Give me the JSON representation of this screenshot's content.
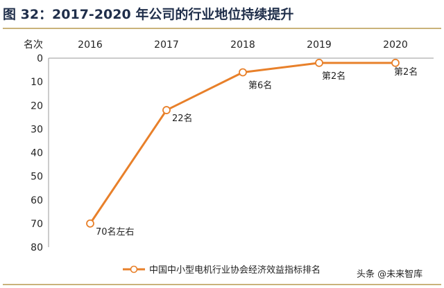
{
  "title": "图 32：2017-2020 年公司的行业地位持续提升",
  "watermark": "头条 @未来智库",
  "chart_data": {
    "type": "line",
    "ylabel": "名次",
    "x": [
      "2016",
      "2017",
      "2018",
      "2019",
      "2020"
    ],
    "ylim": [
      0,
      80
    ],
    "y_inverted": true,
    "y_ticks": [
      0,
      10,
      20,
      30,
      40,
      50,
      60,
      70,
      80
    ],
    "grid": false,
    "legend_position": "bottom-center",
    "series": [
      {
        "name": "中国中小型电机行业协会经济效益指标排名",
        "color": "#e8802a",
        "values": [
          70,
          22,
          6,
          2,
          2
        ],
        "labels": [
          "70名左右",
          "22名",
          "第6名",
          "第2名",
          "第2名"
        ]
      }
    ]
  }
}
